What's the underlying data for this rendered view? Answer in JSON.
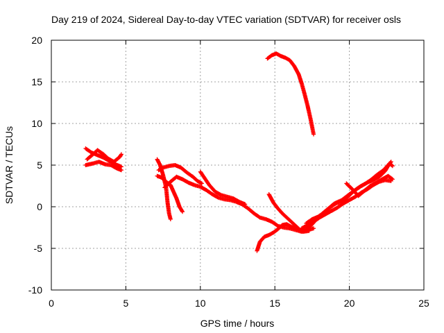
{
  "chart_data": {
    "type": "scatter",
    "title": "Day 219 of 2024, Sidereal Day-to-day VTEC variation (SDTVAR) for receiver osls",
    "xlabel": "GPS time / hours",
    "ylabel": "SDTVAR / TECUs",
    "xlim": [
      0,
      25
    ],
    "ylim": [
      -10,
      20
    ],
    "xticks": [
      0,
      5,
      10,
      15,
      20,
      25
    ],
    "yticks": [
      -10,
      -5,
      0,
      5,
      10,
      15,
      20
    ],
    "grid": true,
    "marker": "+",
    "series_color": "#ff0000",
    "series": [
      {
        "name": "osls",
        "segments": [
          [
            [
              2.3,
              5.0
            ],
            [
              2.8,
              5.2
            ],
            [
              3.2,
              5.4
            ],
            [
              3.6,
              5.1
            ],
            [
              4.0,
              5.0
            ],
            [
              4.4,
              4.6
            ],
            [
              4.7,
              4.4
            ]
          ],
          [
            [
              2.3,
              7.0
            ],
            [
              2.7,
              6.5
            ],
            [
              3.1,
              6.2
            ],
            [
              3.5,
              5.9
            ],
            [
              3.9,
              5.5
            ],
            [
              4.3,
              5.1
            ],
            [
              4.7,
              4.8
            ]
          ],
          [
            [
              2.4,
              5.7
            ],
            [
              2.8,
              6.3
            ],
            [
              3.1,
              6.8
            ],
            [
              3.5,
              6.3
            ],
            [
              3.8,
              5.8
            ],
            [
              4.2,
              5.4
            ],
            [
              4.6,
              6.0
            ],
            [
              4.7,
              6.3
            ]
          ],
          [
            [
              7.1,
              5.7
            ],
            [
              7.3,
              5.0
            ],
            [
              7.5,
              3.8
            ],
            [
              7.7,
              2.3
            ],
            [
              7.8,
              0.5
            ],
            [
              7.9,
              -0.8
            ],
            [
              8.0,
              -1.5
            ]
          ],
          [
            [
              7.1,
              3.7
            ],
            [
              7.4,
              3.5
            ],
            [
              7.7,
              3.0
            ],
            [
              8.0,
              2.6
            ],
            [
              8.2,
              1.8
            ],
            [
              8.4,
              1.0
            ],
            [
              8.6,
              0.0
            ],
            [
              8.8,
              -0.6
            ]
          ],
          [
            [
              7.2,
              4.4
            ],
            [
              7.5,
              4.7
            ],
            [
              7.9,
              4.9
            ],
            [
              8.3,
              5.0
            ],
            [
              8.7,
              4.7
            ],
            [
              9.1,
              4.1
            ],
            [
              9.5,
              3.6
            ],
            [
              9.8,
              3.1
            ],
            [
              10.1,
              2.8
            ]
          ],
          [
            [
              7.6,
              2.3
            ],
            [
              8.0,
              3.0
            ],
            [
              8.4,
              3.6
            ],
            [
              8.8,
              3.3
            ],
            [
              9.2,
              2.9
            ],
            [
              9.6,
              2.6
            ],
            [
              10.0,
              2.4
            ],
            [
              10.4,
              2.0
            ],
            [
              10.8,
              1.5
            ],
            [
              11.2,
              1.1
            ],
            [
              11.6,
              0.9
            ],
            [
              12.0,
              0.8
            ],
            [
              12.4,
              0.6
            ],
            [
              12.8,
              0.3
            ],
            [
              13.2,
              -0.2
            ],
            [
              13.6,
              -0.8
            ],
            [
              14.0,
              -1.3
            ],
            [
              14.4,
              -1.5
            ],
            [
              14.8,
              -1.8
            ],
            [
              15.2,
              -2.3
            ],
            [
              15.6,
              -2.5
            ],
            [
              16.0,
              -2.6
            ],
            [
              16.4,
              -2.8
            ],
            [
              16.8,
              -3.0
            ],
            [
              17.2,
              -2.8
            ],
            [
              17.6,
              -2.6
            ]
          ],
          [
            [
              10.0,
              4.2
            ],
            [
              10.3,
              3.4
            ],
            [
              10.6,
              2.6
            ],
            [
              11.0,
              1.8
            ],
            [
              11.4,
              1.4
            ],
            [
              11.8,
              1.2
            ],
            [
              12.2,
              1.0
            ],
            [
              12.6,
              0.6
            ],
            [
              13.0,
              0.3
            ]
          ],
          [
            [
              13.8,
              -5.3
            ],
            [
              14.0,
              -4.2
            ],
            [
              14.3,
              -3.6
            ],
            [
              14.6,
              -3.4
            ],
            [
              14.9,
              -3.1
            ],
            [
              15.2,
              -2.7
            ],
            [
              15.5,
              -2.2
            ],
            [
              15.8,
              -2.1
            ],
            [
              16.1,
              -2.4
            ],
            [
              16.5,
              -2.7
            ],
            [
              16.9,
              -3.0
            ],
            [
              17.3,
              -2.9
            ]
          ],
          [
            [
              14.6,
              1.5
            ],
            [
              14.9,
              0.5
            ],
            [
              15.2,
              -0.2
            ],
            [
              15.5,
              -0.8
            ],
            [
              15.8,
              -1.3
            ],
            [
              16.1,
              -1.8
            ],
            [
              16.4,
              -2.3
            ],
            [
              16.7,
              -2.8
            ],
            [
              17.0,
              -2.9
            ],
            [
              17.4,
              -2.3
            ],
            [
              17.8,
              -1.5
            ],
            [
              18.2,
              -0.8
            ],
            [
              18.6,
              -0.2
            ],
            [
              19.0,
              0.4
            ],
            [
              19.5,
              0.8
            ],
            [
              20.0,
              1.5
            ],
            [
              20.4,
              2.0
            ],
            [
              20.8,
              2.5
            ],
            [
              21.2,
              2.9
            ],
            [
              21.6,
              3.2
            ],
            [
              22.0,
              3.6
            ],
            [
              22.4,
              4.3
            ],
            [
              22.7,
              5.2
            ],
            [
              22.9,
              4.9
            ]
          ],
          [
            [
              16.8,
              -2.6
            ],
            [
              17.2,
              -2.2
            ],
            [
              17.6,
              -1.8
            ],
            [
              18.0,
              -1.3
            ],
            [
              18.4,
              -0.9
            ],
            [
              18.8,
              -0.5
            ],
            [
              19.2,
              -0.1
            ],
            [
              19.6,
              0.4
            ],
            [
              20.0,
              0.8
            ],
            [
              20.4,
              1.2
            ],
            [
              20.8,
              1.7
            ],
            [
              21.2,
              2.1
            ],
            [
              21.6,
              2.6
            ],
            [
              22.0,
              3.0
            ],
            [
              22.4,
              3.2
            ],
            [
              22.8,
              3.1
            ]
          ],
          [
            [
              17.1,
              -2.0
            ],
            [
              17.5,
              -1.5
            ],
            [
              17.9,
              -1.2
            ],
            [
              18.3,
              -0.7
            ],
            [
              18.7,
              -0.1
            ],
            [
              19.1,
              0.4
            ],
            [
              19.5,
              0.6
            ],
            [
              19.9,
              1.2
            ],
            [
              20.3,
              1.9
            ],
            [
              20.7,
              2.4
            ],
            [
              21.1,
              2.8
            ],
            [
              21.5,
              3.3
            ],
            [
              21.9,
              3.9
            ],
            [
              22.3,
              4.4
            ],
            [
              22.6,
              5.0
            ],
            [
              22.8,
              5.4
            ]
          ],
          [
            [
              19.8,
              2.8
            ],
            [
              20.2,
              2.1
            ],
            [
              20.6,
              1.3
            ],
            [
              21.0,
              1.9
            ],
            [
              21.4,
              2.5
            ],
            [
              21.8,
              2.9
            ],
            [
              22.2,
              3.3
            ],
            [
              22.6,
              3.7
            ],
            [
              22.9,
              3.3
            ]
          ],
          [
            [
              14.5,
              17.8
            ],
            [
              14.8,
              18.2
            ],
            [
              15.1,
              18.4
            ],
            [
              15.4,
              18.1
            ],
            [
              15.7,
              17.9
            ],
            [
              16.0,
              17.6
            ],
            [
              16.3,
              16.9
            ],
            [
              16.6,
              15.9
            ],
            [
              16.8,
              14.8
            ],
            [
              17.0,
              13.5
            ],
            [
              17.2,
              12.1
            ],
            [
              17.4,
              10.5
            ],
            [
              17.6,
              8.7
            ]
          ]
        ]
      }
    ]
  }
}
